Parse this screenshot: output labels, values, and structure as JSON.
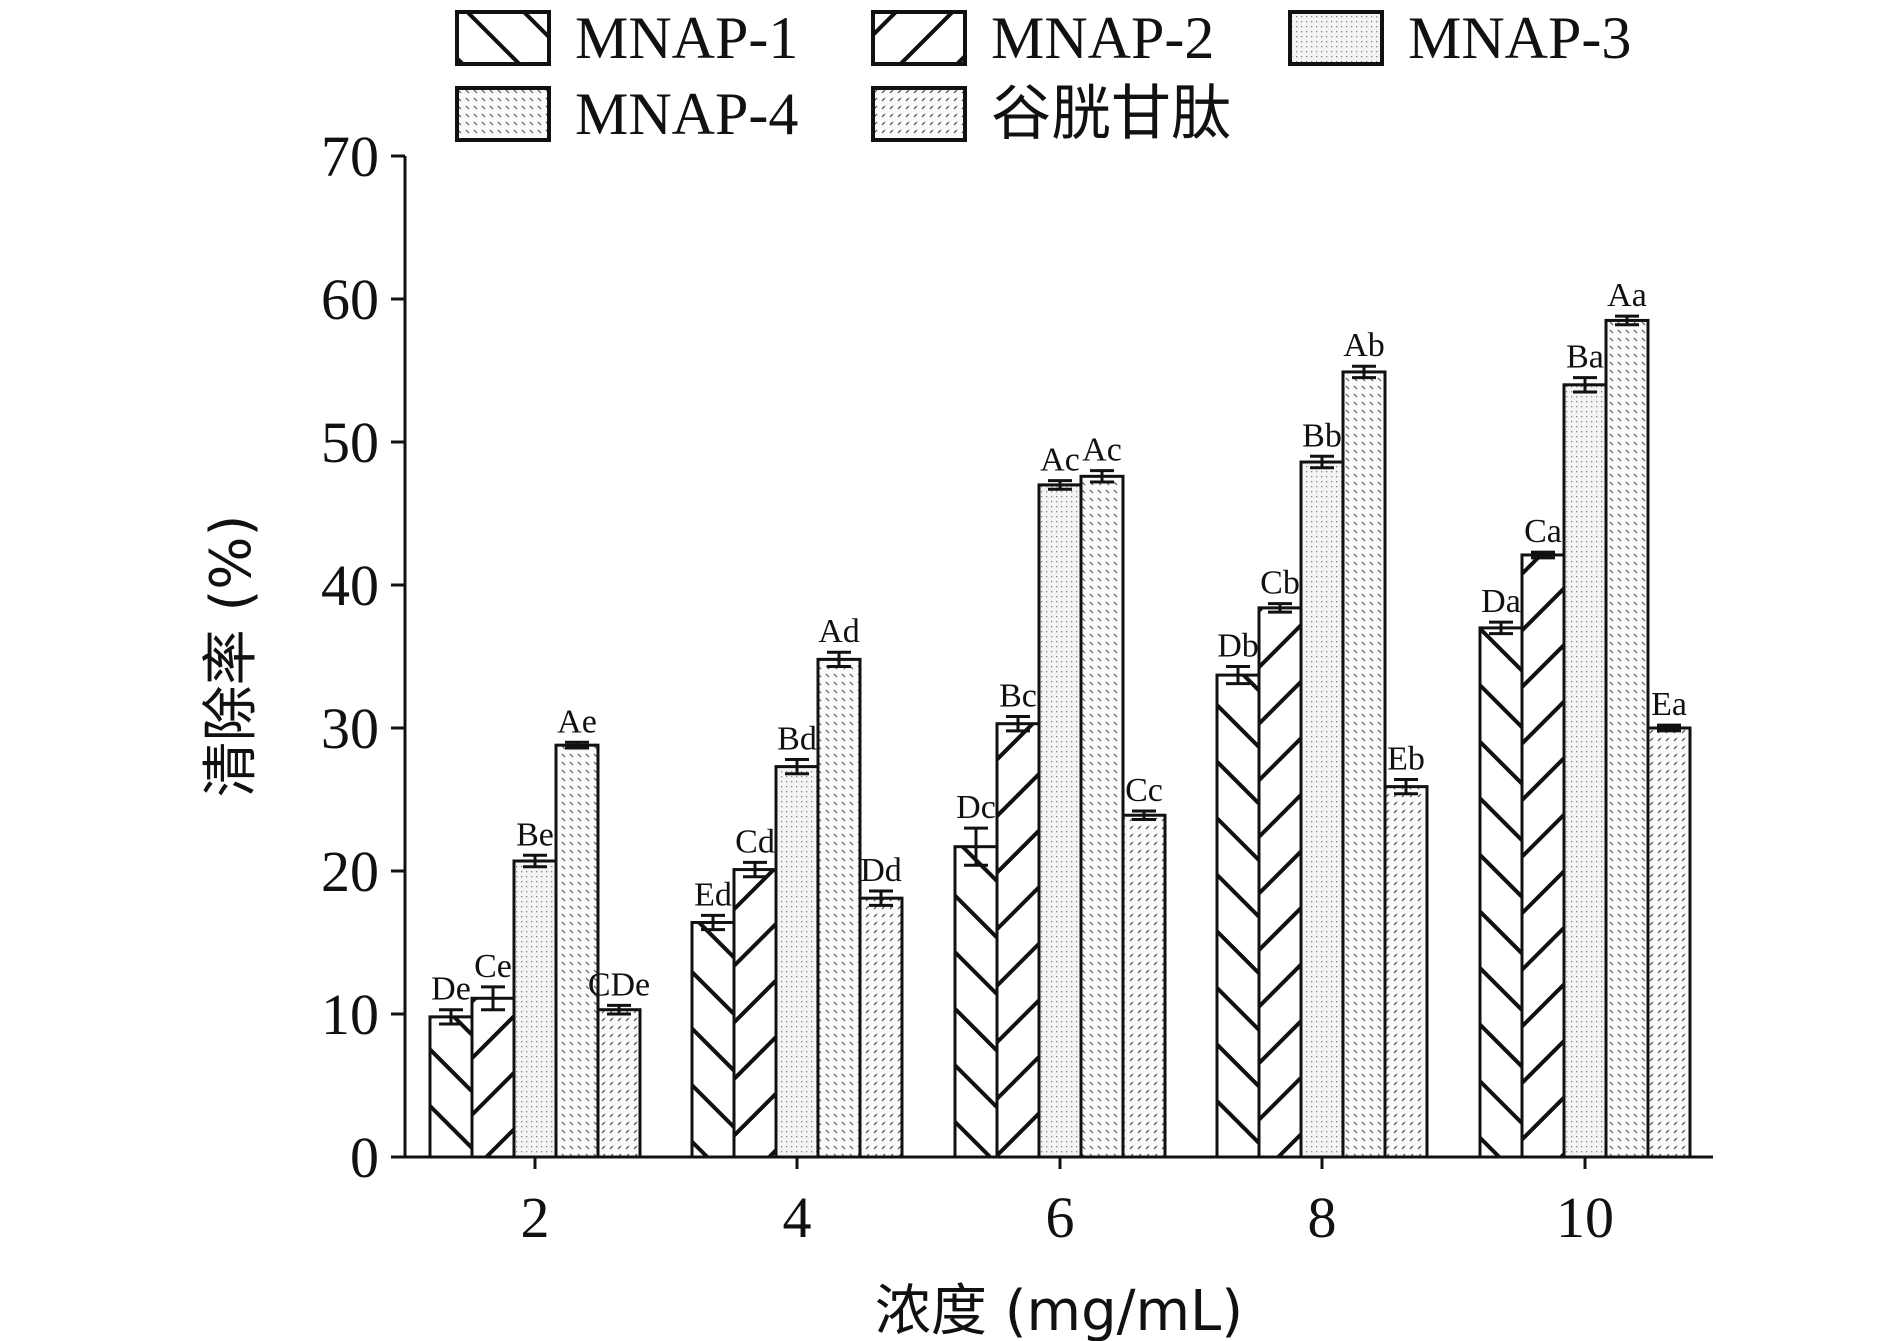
{
  "chart_data": {
    "type": "bar",
    "title": "",
    "xlabel": "浓度 (mg/mL)",
    "ylabel": "清除率 (%)",
    "ylim": [
      0,
      70
    ],
    "yticks": [
      "0",
      "10",
      "20",
      "30",
      "40",
      "50",
      "60",
      "70"
    ],
    "categories": [
      "2",
      "4",
      "6",
      "8",
      "10"
    ],
    "legend_position": "top",
    "series": [
      {
        "name": "MNAP-1",
        "pattern": "diagonal-forward",
        "values": [
          9.8,
          16.4,
          21.7,
          33.7,
          37.0
        ],
        "errors": [
          0.5,
          0.5,
          1.3,
          0.6,
          0.4
        ],
        "labels": [
          "De",
          "Ed",
          "Dc",
          "Db",
          "Da"
        ]
      },
      {
        "name": "MNAP-2",
        "pattern": "diagonal-back",
        "values": [
          11.1,
          20.1,
          30.3,
          38.4,
          42.1
        ],
        "errors": [
          0.8,
          0.5,
          0.5,
          0.3,
          0.2
        ],
        "labels": [
          "Ce",
          "Cd",
          "Bc",
          "Cb",
          "Ca"
        ]
      },
      {
        "name": "MNAP-3",
        "pattern": "fine-dots",
        "values": [
          20.7,
          27.3,
          47.0,
          48.6,
          54.0
        ],
        "errors": [
          0.4,
          0.5,
          0.3,
          0.4,
          0.5
        ],
        "labels": [
          "Be",
          "Bd",
          "Ac",
          "Bb",
          "Ba"
        ]
      },
      {
        "name": "MNAP-4",
        "pattern": "back-dashes",
        "values": [
          28.8,
          34.8,
          47.6,
          54.9,
          58.5
        ],
        "errors": [
          0.2,
          0.5,
          0.4,
          0.4,
          0.3
        ],
        "labels": [
          "Ae",
          "Ad",
          "Ac",
          "Ab",
          "Aa"
        ]
      },
      {
        "name": "谷胱甘肽",
        "pattern": "forward-dashes",
        "values": [
          10.3,
          18.1,
          23.9,
          25.9,
          30.0
        ],
        "errors": [
          0.3,
          0.5,
          0.3,
          0.5,
          0.2
        ],
        "labels": [
          "CDe",
          "Dd",
          "Cc",
          "Eb",
          "Ea"
        ]
      }
    ]
  }
}
